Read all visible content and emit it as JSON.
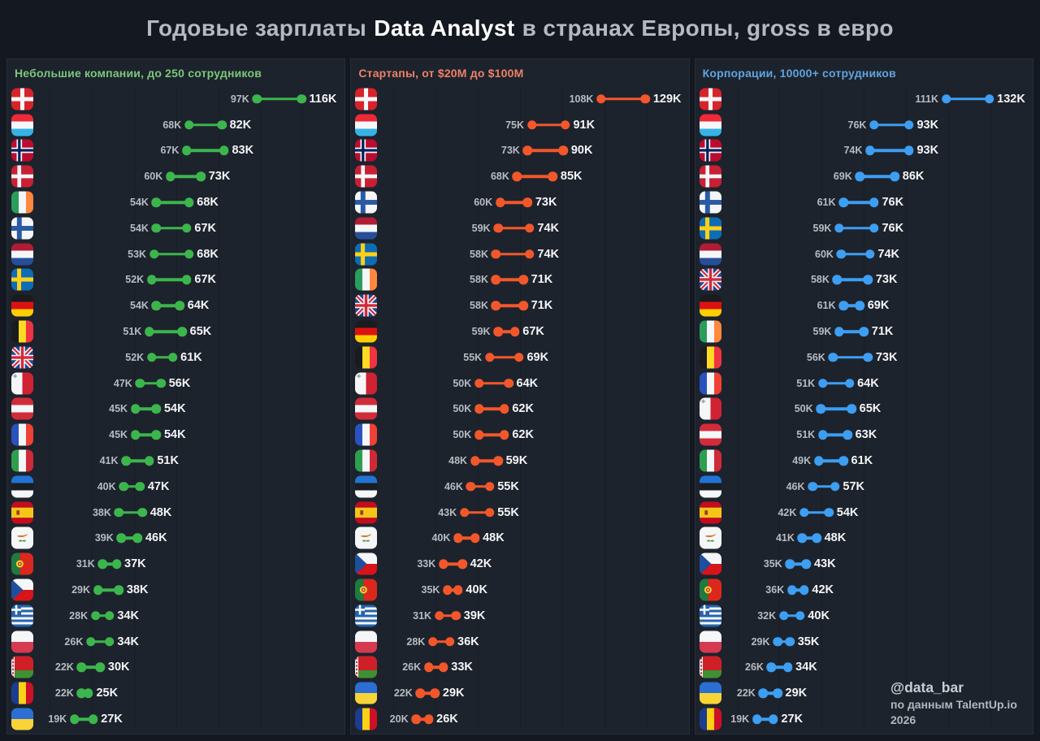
{
  "page_title": {
    "part1": "Годовые зарплаты ",
    "highlight": "Data Analyst",
    "part2": " в странах Европы, gross в евро"
  },
  "attribution": {
    "handle": "@data_bar",
    "source": "по данным TalentUp.io",
    "year": "2026"
  },
  "chart_data": [
    {
      "type": "dumbbell",
      "title": "Небольшие компании, до 250 сотрудников",
      "title_color": "#79c87b",
      "accent_color": "#3cb54d",
      "unit": "K",
      "x_scale_max": 116,
      "rows": [
        {
          "country": "Switzerland",
          "flag": "ch",
          "min": "97K",
          "max": "116K"
        },
        {
          "country": "Luxembourg",
          "flag": "lu",
          "min": "68K",
          "max": "82K"
        },
        {
          "country": "Norway",
          "flag": "no",
          "min": "67K",
          "max": "83K"
        },
        {
          "country": "Denmark",
          "flag": "dk",
          "min": "60K",
          "max": "73K"
        },
        {
          "country": "Ireland",
          "flag": "ie",
          "min": "54K",
          "max": "68K"
        },
        {
          "country": "Finland",
          "flag": "fi",
          "min": "54K",
          "max": "67K"
        },
        {
          "country": "Netherlands",
          "flag": "nl",
          "min": "53K",
          "max": "68K"
        },
        {
          "country": "Sweden",
          "flag": "se",
          "min": "52K",
          "max": "67K"
        },
        {
          "country": "Germany",
          "flag": "de",
          "min": "54K",
          "max": "64K"
        },
        {
          "country": "Belgium",
          "flag": "be",
          "min": "51K",
          "max": "65K"
        },
        {
          "country": "United Kingdom",
          "flag": "gb",
          "min": "52K",
          "max": "61K"
        },
        {
          "country": "Malta",
          "flag": "mt",
          "min": "47K",
          "max": "56K"
        },
        {
          "country": "Austria",
          "flag": "at",
          "min": "45K",
          "max": "54K"
        },
        {
          "country": "France",
          "flag": "fr",
          "min": "45K",
          "max": "54K"
        },
        {
          "country": "Italy",
          "flag": "it",
          "min": "41K",
          "max": "51K"
        },
        {
          "country": "Estonia",
          "flag": "ee",
          "min": "40K",
          "max": "47K"
        },
        {
          "country": "Spain",
          "flag": "es",
          "min": "38K",
          "max": "48K"
        },
        {
          "country": "Cyprus",
          "flag": "cy",
          "min": "39K",
          "max": "46K"
        },
        {
          "country": "Portugal",
          "flag": "pt",
          "min": "31K",
          "max": "37K"
        },
        {
          "country": "Czechia",
          "flag": "cz",
          "min": "29K",
          "max": "38K"
        },
        {
          "country": "Greece",
          "flag": "gr",
          "min": "28K",
          "max": "34K"
        },
        {
          "country": "Poland",
          "flag": "pl",
          "min": "26K",
          "max": "34K"
        },
        {
          "country": "Belarus",
          "flag": "by",
          "min": "22K",
          "max": "30K"
        },
        {
          "country": "Romania",
          "flag": "ro",
          "min": "22K",
          "max": "25K"
        },
        {
          "country": "Ukraine",
          "flag": "ua",
          "min": "19K",
          "max": "27K"
        }
      ]
    },
    {
      "type": "dumbbell",
      "title": "Стартапы, от $20M до $100M",
      "title_color": "#ee8068",
      "accent_color": "#f2572b",
      "unit": "K",
      "x_scale_max": 129,
      "rows": [
        {
          "country": "Switzerland",
          "flag": "ch",
          "min": "108K",
          "max": "129K"
        },
        {
          "country": "Luxembourg",
          "flag": "lu",
          "min": "75K",
          "max": "91K"
        },
        {
          "country": "Norway",
          "flag": "no",
          "min": "73K",
          "max": "90K"
        },
        {
          "country": "Denmark",
          "flag": "dk",
          "min": "68K",
          "max": "85K"
        },
        {
          "country": "Finland",
          "flag": "fi",
          "min": "60K",
          "max": "73K"
        },
        {
          "country": "Netherlands",
          "flag": "nl",
          "min": "59K",
          "max": "74K"
        },
        {
          "country": "Sweden",
          "flag": "se",
          "min": "58K",
          "max": "74K"
        },
        {
          "country": "Ireland",
          "flag": "ie",
          "min": "58K",
          "max": "71K"
        },
        {
          "country": "United Kingdom",
          "flag": "gb",
          "min": "58K",
          "max": "71K"
        },
        {
          "country": "Germany",
          "flag": "de",
          "min": "59K",
          "max": "67K"
        },
        {
          "country": "Belgium",
          "flag": "be",
          "min": "55K",
          "max": "69K"
        },
        {
          "country": "Malta",
          "flag": "mt",
          "min": "50K",
          "max": "64K"
        },
        {
          "country": "Austria",
          "flag": "at",
          "min": "50K",
          "max": "62K"
        },
        {
          "country": "France",
          "flag": "fr",
          "min": "50K",
          "max": "62K"
        },
        {
          "country": "Italy",
          "flag": "it",
          "min": "48K",
          "max": "59K"
        },
        {
          "country": "Estonia",
          "flag": "ee",
          "min": "46K",
          "max": "55K"
        },
        {
          "country": "Spain",
          "flag": "es",
          "min": "43K",
          "max": "55K"
        },
        {
          "country": "Cyprus",
          "flag": "cy",
          "min": "40K",
          "max": "48K"
        },
        {
          "country": "Czechia",
          "flag": "cz",
          "min": "33K",
          "max": "42K"
        },
        {
          "country": "Portugal",
          "flag": "pt",
          "min": "35K",
          "max": "40K"
        },
        {
          "country": "Greece",
          "flag": "gr",
          "min": "31K",
          "max": "39K"
        },
        {
          "country": "Poland",
          "flag": "pl",
          "min": "28K",
          "max": "36K"
        },
        {
          "country": "Belarus",
          "flag": "by",
          "min": "26K",
          "max": "33K"
        },
        {
          "country": "Ukraine",
          "flag": "ua",
          "min": "22K",
          "max": "29K"
        },
        {
          "country": "Romania",
          "flag": "ro",
          "min": "20K",
          "max": "26K"
        }
      ]
    },
    {
      "type": "dumbbell",
      "title": "Корпорации, 10000+ сотрудников",
      "title_color": "#5fa3e0",
      "accent_color": "#3d9ef2",
      "unit": "K",
      "x_scale_max": 132,
      "rows": [
        {
          "country": "Switzerland",
          "flag": "ch",
          "min": "111K",
          "max": "132K"
        },
        {
          "country": "Luxembourg",
          "flag": "lu",
          "min": "76K",
          "max": "93K"
        },
        {
          "country": "Norway",
          "flag": "no",
          "min": "74K",
          "max": "93K"
        },
        {
          "country": "Denmark",
          "flag": "dk",
          "min": "69K",
          "max": "86K"
        },
        {
          "country": "Finland",
          "flag": "fi",
          "min": "61K",
          "max": "76K"
        },
        {
          "country": "Sweden",
          "flag": "se",
          "min": "59K",
          "max": "76K"
        },
        {
          "country": "Netherlands",
          "flag": "nl",
          "min": "60K",
          "max": "74K"
        },
        {
          "country": "United Kingdom",
          "flag": "gb",
          "min": "58K",
          "max": "73K"
        },
        {
          "country": "Germany",
          "flag": "de",
          "min": "61K",
          "max": "69K"
        },
        {
          "country": "Ireland",
          "flag": "ie",
          "min": "59K",
          "max": "71K"
        },
        {
          "country": "Belgium",
          "flag": "be",
          "min": "56K",
          "max": "73K"
        },
        {
          "country": "France",
          "flag": "fr",
          "min": "51K",
          "max": "64K"
        },
        {
          "country": "Malta",
          "flag": "mt",
          "min": "50K",
          "max": "65K"
        },
        {
          "country": "Austria",
          "flag": "at",
          "min": "51K",
          "max": "63K"
        },
        {
          "country": "Italy",
          "flag": "it",
          "min": "49K",
          "max": "61K"
        },
        {
          "country": "Estonia",
          "flag": "ee",
          "min": "46K",
          "max": "57K"
        },
        {
          "country": "Spain",
          "flag": "es",
          "min": "42K",
          "max": "54K"
        },
        {
          "country": "Cyprus",
          "flag": "cy",
          "min": "41K",
          "max": "48K"
        },
        {
          "country": "Czechia",
          "flag": "cz",
          "min": "35K",
          "max": "43K"
        },
        {
          "country": "Portugal",
          "flag": "pt",
          "min": "36K",
          "max": "42K"
        },
        {
          "country": "Greece",
          "flag": "gr",
          "min": "32K",
          "max": "40K"
        },
        {
          "country": "Poland",
          "flag": "pl",
          "min": "29K",
          "max": "35K"
        },
        {
          "country": "Belarus",
          "flag": "by",
          "min": "26K",
          "max": "34K"
        },
        {
          "country": "Ukraine",
          "flag": "ua",
          "min": "22K",
          "max": "29K"
        },
        {
          "country": "Romania",
          "flag": "ro",
          "min": "19K",
          "max": "27K"
        }
      ]
    }
  ]
}
